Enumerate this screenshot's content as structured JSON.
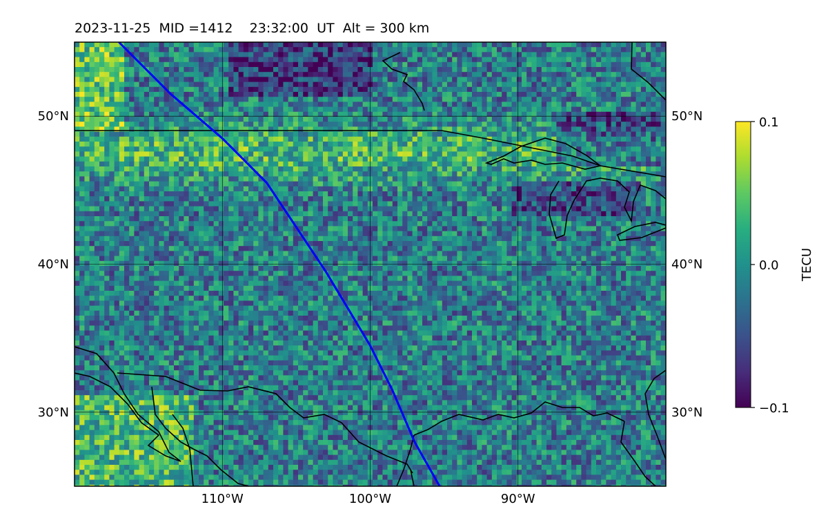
{
  "title": {
    "date": "2023-11-25",
    "mid": "MID =1412",
    "time": "23:32:00",
    "ut": "UT",
    "alt": "Alt = 300 km"
  },
  "map": {
    "lon_range": [
      -120,
      -80
    ],
    "lat_range": [
      25,
      55
    ],
    "lon_gridlines": [
      -110,
      -100,
      -90
    ],
    "lat_gridlines": [
      30,
      40,
      50
    ],
    "lon_tick_labels": [
      "110°W",
      "100°W",
      "90°W"
    ],
    "lat_tick_labels": [
      "30°N",
      "40°N",
      "50°N"
    ],
    "track_color": "#0000ff",
    "coast_color": "#000000",
    "satellite_track": [
      [
        -117.0,
        55.0
      ],
      [
        -113.5,
        51.5
      ],
      [
        -110.0,
        48.5
      ],
      [
        -107.0,
        45.5
      ],
      [
        -105.0,
        42.5
      ],
      [
        -103.0,
        39.5
      ],
      [
        -101.5,
        37.0
      ],
      [
        -100.0,
        34.5
      ],
      [
        -98.5,
        31.5
      ],
      [
        -97.0,
        28.0
      ],
      [
        -95.3,
        25.0
      ]
    ]
  },
  "colorbar": {
    "label": "TECU",
    "vmin": -0.1,
    "vmax": 0.1,
    "ticks": [
      "0.1",
      "0.0",
      "−0.1"
    ],
    "colormap": "viridis"
  }
}
